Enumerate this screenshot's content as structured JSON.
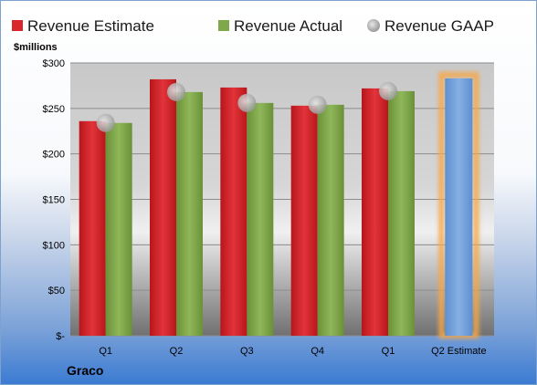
{
  "company": "Graco",
  "chart_data": {
    "type": "bar",
    "ylabel": "$millions",
    "ylim": [
      0,
      300
    ],
    "yticks": [
      {
        "value": 0,
        "label": "$-"
      },
      {
        "value": 50,
        "label": "$50"
      },
      {
        "value": 100,
        "label": "$100"
      },
      {
        "value": 150,
        "label": "$150"
      },
      {
        "value": 200,
        "label": "$200"
      },
      {
        "value": 250,
        "label": "$250"
      },
      {
        "value": 300,
        "label": "$300"
      }
    ],
    "categories": [
      "Q1",
      "Q2",
      "Q3",
      "Q4",
      "Q1",
      "Q2 Estimate"
    ],
    "legend_position": "top",
    "grid": true,
    "series": [
      {
        "name": "Revenue Estimate",
        "kind": "bar",
        "color": "#d9262b",
        "values": [
          236,
          282,
          273,
          253,
          272,
          null
        ]
      },
      {
        "name": "Revenue Actual",
        "kind": "bar",
        "color": "#7fa84a",
        "values": [
          234,
          268,
          256,
          254,
          269,
          null
        ]
      },
      {
        "name": "Revenue GAAP",
        "kind": "marker",
        "color": "#b3b3b3",
        "values": [
          234,
          268,
          256,
          254,
          269,
          null
        ]
      }
    ],
    "forecast": {
      "category": "Q2 Estimate",
      "value": 283,
      "color": "#6f9ed6",
      "glow": "#f5a74a"
    }
  }
}
